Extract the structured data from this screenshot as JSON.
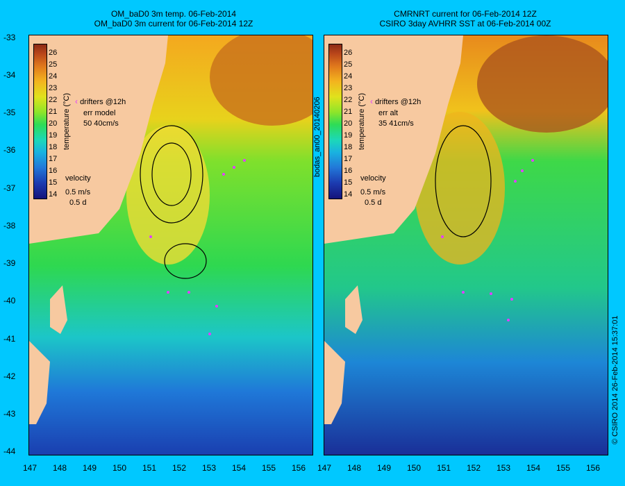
{
  "left_panel": {
    "title_line1": "OM_baD0 3m temp. 06-Feb-2014",
    "title_line2": "OM_baD0 3m current for 06-Feb-2014 12Z",
    "legend_title": "temperature (°C)",
    "legend_ticks": [
      "26",
      "25",
      "24",
      "23",
      "22",
      "21",
      "20",
      "19",
      "18",
      "17",
      "16",
      "15",
      "14"
    ],
    "drifters_label": "drifters @12h",
    "err_label": "err model",
    "err_values": "50 40cm/s",
    "velocity_label": "velocity",
    "velocity_scale": "0.5 m/s",
    "velocity_days": "0.5 d"
  },
  "right_panel": {
    "title_line1": "CMRNRT current for 06-Feb-2014 12Z",
    "title_line2": "CSIRO 3day AVHRR SST at 06-Feb-2014 00Z",
    "legend_title": "temperature (°C)",
    "legend_ticks": [
      "26",
      "25",
      "24",
      "23",
      "22",
      "21",
      "20",
      "19",
      "18",
      "17",
      "16",
      "15",
      "14"
    ],
    "drifters_label": "drifters @12h",
    "err_label": "err alt",
    "err_values": "35 41cm/s",
    "velocity_label": "velocity",
    "velocity_scale": "0.5 m/s",
    "velocity_days": "0.5 d"
  },
  "y_ticks": [
    "-33",
    "-34",
    "-35",
    "-36",
    "-37",
    "-38",
    "-39",
    "-40",
    "-41",
    "-42",
    "-43",
    "-44"
  ],
  "x_ticks_left": [
    "147",
    "148",
    "149",
    "150",
    "151",
    "152",
    "153",
    "154",
    "155",
    "156"
  ],
  "x_ticks_right": [
    "147",
    "148",
    "149",
    "150",
    "151",
    "152",
    "153",
    "154",
    "155",
    "156"
  ],
  "side_label_mid": "bodas_an00_20140206",
  "side_label_right": "© CSIRO 2014   26-Feb-2014 15:37:01",
  "colors": {
    "background": "#00c8ff",
    "land": "#f7c9a0",
    "drifter": "#e040ff"
  }
}
